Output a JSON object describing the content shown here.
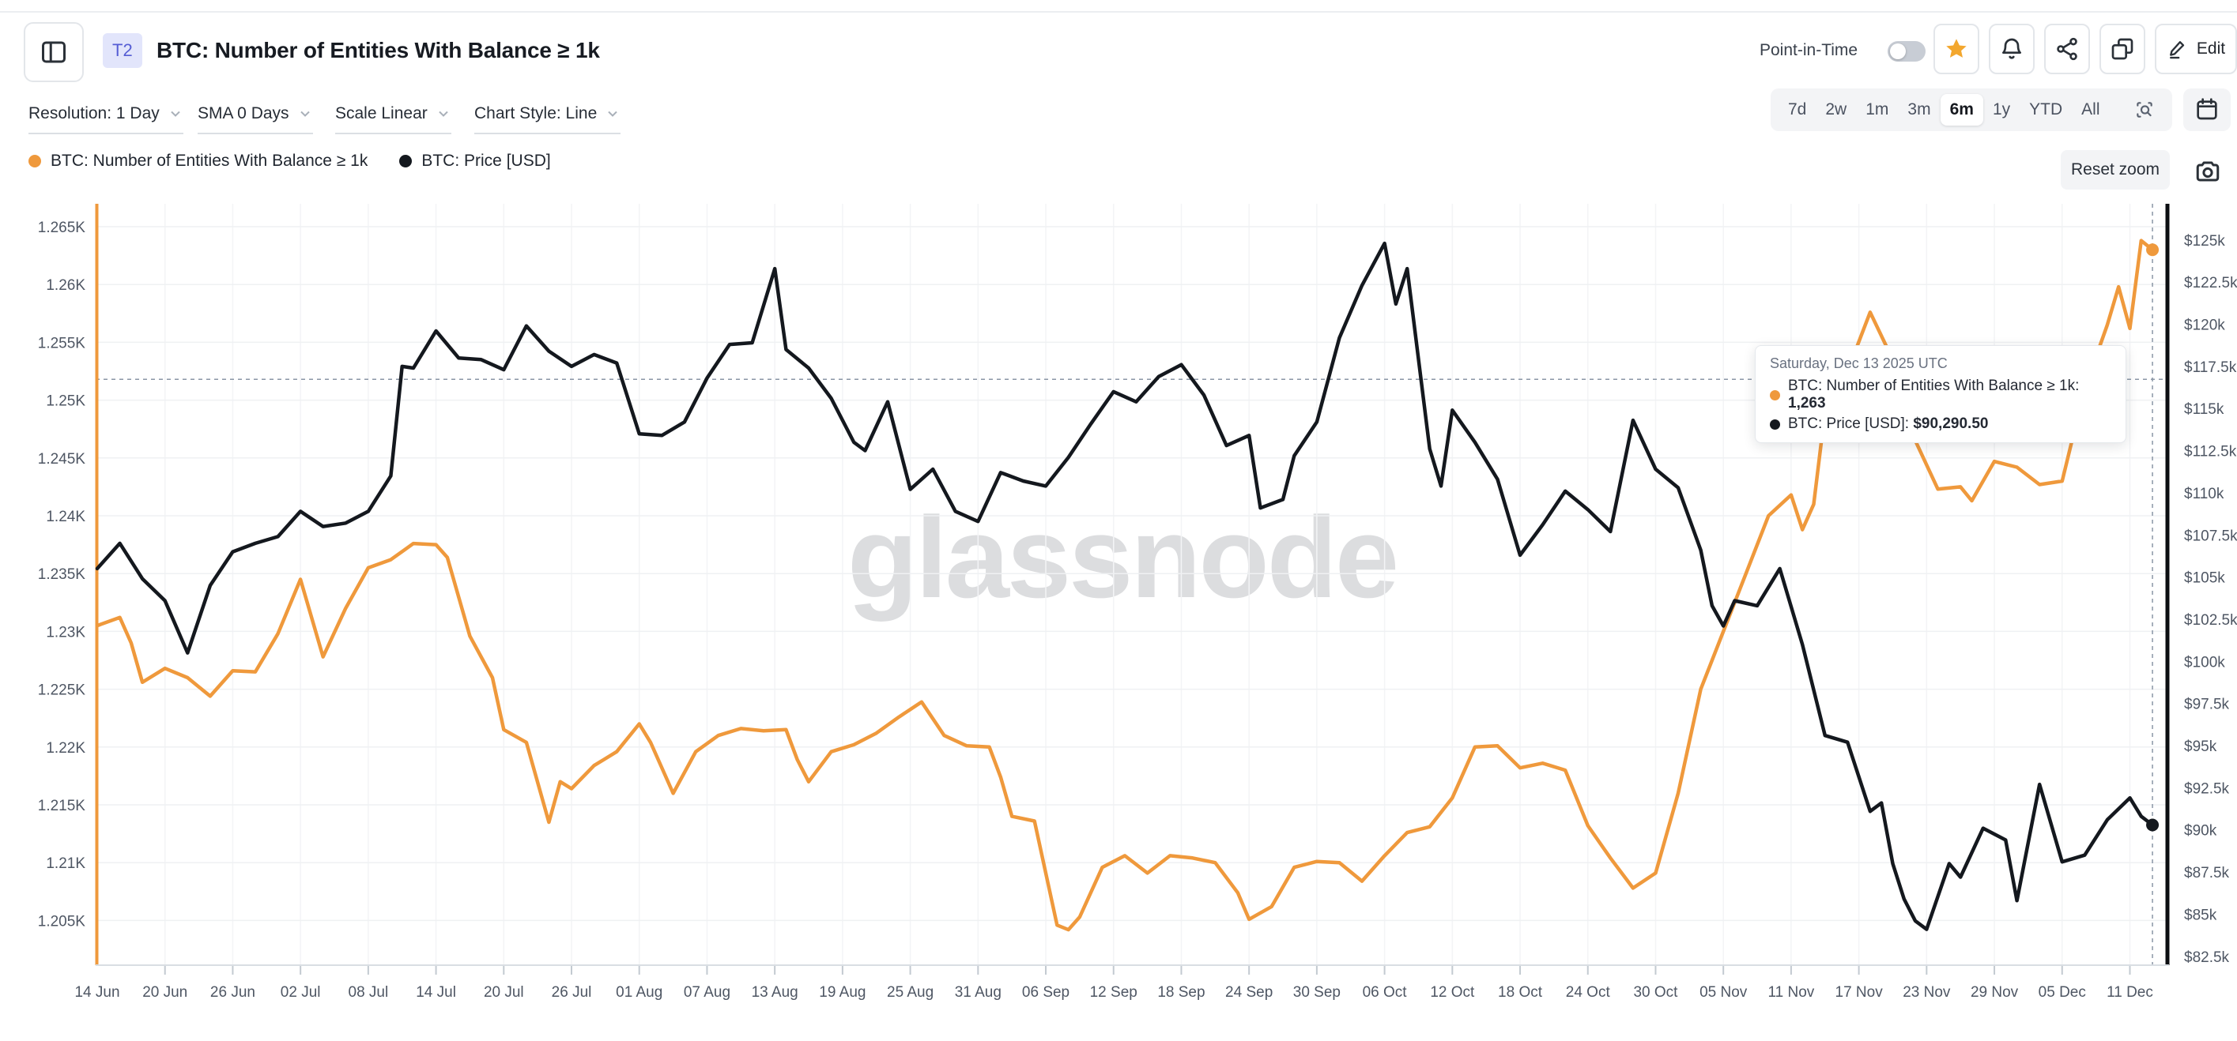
{
  "header": {
    "badge": "T2",
    "title": "BTC: Number of Entities With Balance ≥ 1k",
    "point_in_time_label": "Point-in-Time",
    "point_in_time_on": false,
    "edit_label": "Edit"
  },
  "toolbar": {
    "dropdowns": [
      {
        "label": "Resolution: 1 Day"
      },
      {
        "label": "SMA 0 Days"
      },
      {
        "label": "Scale Linear"
      },
      {
        "label": "Chart Style: Line"
      }
    ]
  },
  "ranges": {
    "items": [
      "7d",
      "2w",
      "1m",
      "3m",
      "6m",
      "1y",
      "YTD",
      "All"
    ],
    "active": "6m"
  },
  "reset_zoom_label": "Reset zoom",
  "watermark": "glassnode",
  "legend": [
    {
      "label": "BTC: Number of Entities With Balance ≥ 1k",
      "color": "#EF993C"
    },
    {
      "label": "BTC: Price [USD]",
      "color": "#14181E"
    }
  ],
  "tooltip": {
    "date": "Saturday, Dec 13 2025 UTC",
    "rows": [
      {
        "label": "BTC: Number of Entities With Balance ≥ 1k:",
        "value": "1,263",
        "color": "#EF993C"
      },
      {
        "label": "BTC: Price [USD]:",
        "value": "$90,290.50",
        "color": "#14181E"
      }
    ]
  },
  "colors": {
    "orange": "#EF993C",
    "black_line": "#14181E",
    "star": "#F3A72E",
    "badge_bg": "#E2E5FB",
    "badge_text": "#555DD4",
    "grid": "#EFF1F3",
    "crosshair": "#8A96A6",
    "axis_text": "#4E5663"
  },
  "chart_data": {
    "type": "line",
    "title": "BTC: Number of Entities With Balance ≥ 1k vs BTC: Price [USD]",
    "x_axis": {
      "start_date": "2025-06-14",
      "end_date": "2025-12-13",
      "tick_interval_days": 6,
      "tick_labels": [
        "14 Jun",
        "20 Jun",
        "26 Jun",
        "02 Jul",
        "08 Jul",
        "14 Jul",
        "20 Jul",
        "26 Jul",
        "01 Aug",
        "07 Aug",
        "13 Aug",
        "19 Aug",
        "25 Aug",
        "31 Aug",
        "06 Sep",
        "12 Sep",
        "18 Sep",
        "24 Sep",
        "30 Sep",
        "06 Oct",
        "12 Oct",
        "18 Oct",
        "24 Oct",
        "30 Oct",
        "05 Nov",
        "11 Nov",
        "17 Nov",
        "23 Nov",
        "29 Nov",
        "05 Dec",
        "11 Dec"
      ]
    },
    "left_axis": {
      "min": 1205,
      "max": 1265,
      "ticks": [
        {
          "label": "1.265K",
          "value": 1265
        },
        {
          "label": "1.26K",
          "value": 1260
        },
        {
          "label": "1.255K",
          "value": 1255
        },
        {
          "label": "1.25K",
          "value": 1250
        },
        {
          "label": "1.245K",
          "value": 1245
        },
        {
          "label": "1.24K",
          "value": 1240
        },
        {
          "label": "1.235K",
          "value": 1235
        },
        {
          "label": "1.23K",
          "value": 1230
        },
        {
          "label": "1.225K",
          "value": 1225
        },
        {
          "label": "1.22K",
          "value": 1220
        },
        {
          "label": "1.215K",
          "value": 1215
        },
        {
          "label": "1.21K",
          "value": 1210
        },
        {
          "label": "1.205K",
          "value": 1205
        }
      ]
    },
    "right_axis": {
      "min": 82.5,
      "max": 125,
      "ticks": [
        {
          "label": "$125k",
          "value": 125
        },
        {
          "label": "$122.5k",
          "value": 122.5
        },
        {
          "label": "$120k",
          "value": 120
        },
        {
          "label": "$117.5k",
          "value": 117.5
        },
        {
          "label": "$115k",
          "value": 115
        },
        {
          "label": "$112.5k",
          "value": 112.5
        },
        {
          "label": "$110k",
          "value": 110
        },
        {
          "label": "$107.5k",
          "value": 107.5
        },
        {
          "label": "$105k",
          "value": 105
        },
        {
          "label": "$102.5k",
          "value": 102.5
        },
        {
          "label": "$100k",
          "value": 100
        },
        {
          "label": "$97.5k",
          "value": 97.5
        },
        {
          "label": "$95k",
          "value": 95
        },
        {
          "label": "$92.5k",
          "value": 92.5
        },
        {
          "label": "$90k",
          "value": 90
        },
        {
          "label": "$87.5k",
          "value": 87.5
        },
        {
          "label": "$85k",
          "value": 85
        },
        {
          "label": "$82.5k",
          "value": 82.5
        }
      ]
    },
    "crosshair": {
      "day": 182,
      "left_value": 1251.8
    },
    "grid": true,
    "legend_position": "top-left",
    "series": [
      {
        "name": "BTC: Number of Entities With Balance ≥ 1k",
        "color": "#EF993C",
        "axis": "left",
        "end_marker": true,
        "points": [
          [
            0,
            1230.5
          ],
          [
            2,
            1231.2
          ],
          [
            3,
            1229.0
          ],
          [
            4,
            1225.6
          ],
          [
            6,
            1226.8
          ],
          [
            8,
            1226.0
          ],
          [
            10,
            1224.4
          ],
          [
            12,
            1226.6
          ],
          [
            14,
            1226.5
          ],
          [
            16,
            1229.8
          ],
          [
            18,
            1234.5
          ],
          [
            20,
            1227.8
          ],
          [
            22,
            1232.0
          ],
          [
            24,
            1235.5
          ],
          [
            26,
            1236.2
          ],
          [
            28,
            1237.6
          ],
          [
            30,
            1237.5
          ],
          [
            31,
            1236.4
          ],
          [
            33,
            1229.6
          ],
          [
            35,
            1226.0
          ],
          [
            36,
            1221.5
          ],
          [
            38,
            1220.4
          ],
          [
            40,
            1213.5
          ],
          [
            41,
            1217.0
          ],
          [
            42,
            1216.4
          ],
          [
            44,
            1218.4
          ],
          [
            46,
            1219.6
          ],
          [
            48,
            1222.0
          ],
          [
            49,
            1220.4
          ],
          [
            51,
            1216.0
          ],
          [
            53,
            1219.6
          ],
          [
            55,
            1221.0
          ],
          [
            57,
            1221.6
          ],
          [
            59,
            1221.4
          ],
          [
            61,
            1221.5
          ],
          [
            62,
            1218.9
          ],
          [
            63,
            1217.0
          ],
          [
            65,
            1219.6
          ],
          [
            67,
            1220.2
          ],
          [
            69,
            1221.2
          ],
          [
            71,
            1222.6
          ],
          [
            73,
            1223.9
          ],
          [
            75,
            1221.0
          ],
          [
            77,
            1220.1
          ],
          [
            79,
            1220.0
          ],
          [
            80,
            1217.4
          ],
          [
            81,
            1214.0
          ],
          [
            83,
            1213.6
          ],
          [
            85,
            1204.6
          ],
          [
            86,
            1204.2
          ],
          [
            87,
            1205.3
          ],
          [
            89,
            1209.6
          ],
          [
            91,
            1210.6
          ],
          [
            93,
            1209.1
          ],
          [
            95,
            1210.6
          ],
          [
            97,
            1210.4
          ],
          [
            99,
            1210.0
          ],
          [
            101,
            1207.4
          ],
          [
            102,
            1205.1
          ],
          [
            104,
            1206.2
          ],
          [
            106,
            1209.6
          ],
          [
            108,
            1210.1
          ],
          [
            110,
            1210.0
          ],
          [
            112,
            1208.4
          ],
          [
            114,
            1210.6
          ],
          [
            116,
            1212.6
          ],
          [
            118,
            1213.1
          ],
          [
            120,
            1215.6
          ],
          [
            122,
            1220.0
          ],
          [
            124,
            1220.1
          ],
          [
            126,
            1218.2
          ],
          [
            128,
            1218.6
          ],
          [
            130,
            1218.0
          ],
          [
            132,
            1213.2
          ],
          [
            134,
            1210.4
          ],
          [
            136,
            1207.8
          ],
          [
            138,
            1209.1
          ],
          [
            140,
            1216.0
          ],
          [
            142,
            1225.0
          ],
          [
            144,
            1230.0
          ],
          [
            146,
            1235.0
          ],
          [
            148,
            1240.0
          ],
          [
            150,
            1241.8
          ],
          [
            151,
            1238.8
          ],
          [
            152,
            1241.0
          ],
          [
            153,
            1249.0
          ],
          [
            155,
            1252.5
          ],
          [
            157,
            1257.6
          ],
          [
            159,
            1253.5
          ],
          [
            160,
            1248.0
          ],
          [
            161,
            1246.5
          ],
          [
            163,
            1242.3
          ],
          [
            165,
            1242.5
          ],
          [
            166,
            1241.3
          ],
          [
            168,
            1244.7
          ],
          [
            170,
            1244.2
          ],
          [
            172,
            1242.7
          ],
          [
            174,
            1243.0
          ],
          [
            176,
            1251.0
          ],
          [
            178,
            1256.5
          ],
          [
            179,
            1259.8
          ],
          [
            180,
            1256.2
          ],
          [
            181,
            1263.8
          ],
          [
            182,
            1263
          ]
        ]
      },
      {
        "name": "BTC: Price [USD]",
        "color": "#14181E",
        "axis": "right",
        "end_marker": true,
        "points": [
          [
            0,
            105.5
          ],
          [
            2,
            107.0
          ],
          [
            4,
            104.9
          ],
          [
            6,
            103.6
          ],
          [
            8,
            100.5
          ],
          [
            10,
            104.5
          ],
          [
            12,
            106.5
          ],
          [
            14,
            107.0
          ],
          [
            16,
            107.4
          ],
          [
            18,
            108.9
          ],
          [
            20,
            108.0
          ],
          [
            22,
            108.2
          ],
          [
            24,
            108.9
          ],
          [
            26,
            111.0
          ],
          [
            27,
            117.5
          ],
          [
            28,
            117.4
          ],
          [
            30,
            119.6
          ],
          [
            32,
            118.0
          ],
          [
            34,
            117.9
          ],
          [
            36,
            117.3
          ],
          [
            38,
            119.9
          ],
          [
            40,
            118.4
          ],
          [
            42,
            117.5
          ],
          [
            44,
            118.2
          ],
          [
            46,
            117.7
          ],
          [
            48,
            113.5
          ],
          [
            50,
            113.4
          ],
          [
            52,
            114.2
          ],
          [
            54,
            116.8
          ],
          [
            56,
            118.8
          ],
          [
            58,
            118.9
          ],
          [
            60,
            123.3
          ],
          [
            61,
            118.5
          ],
          [
            63,
            117.4
          ],
          [
            65,
            115.6
          ],
          [
            67,
            113.0
          ],
          [
            68,
            112.5
          ],
          [
            70,
            115.4
          ],
          [
            72,
            110.2
          ],
          [
            74,
            111.4
          ],
          [
            76,
            108.9
          ],
          [
            78,
            108.3
          ],
          [
            80,
            111.2
          ],
          [
            82,
            110.7
          ],
          [
            84,
            110.4
          ],
          [
            86,
            112.1
          ],
          [
            88,
            114.1
          ],
          [
            90,
            116.0
          ],
          [
            92,
            115.4
          ],
          [
            94,
            116.9
          ],
          [
            96,
            117.6
          ],
          [
            98,
            115.8
          ],
          [
            100,
            112.8
          ],
          [
            102,
            113.4
          ],
          [
            103,
            109.1
          ],
          [
            105,
            109.6
          ],
          [
            106,
            112.2
          ],
          [
            108,
            114.2
          ],
          [
            110,
            119.2
          ],
          [
            112,
            122.3
          ],
          [
            114,
            124.8
          ],
          [
            115,
            121.2
          ],
          [
            116,
            123.3
          ],
          [
            118,
            112.6
          ],
          [
            119,
            110.4
          ],
          [
            120,
            114.9
          ],
          [
            122,
            113.0
          ],
          [
            124,
            110.8
          ],
          [
            126,
            106.3
          ],
          [
            128,
            108.1
          ],
          [
            130,
            110.1
          ],
          [
            132,
            109.0
          ],
          [
            134,
            107.7
          ],
          [
            136,
            114.3
          ],
          [
            138,
            111.4
          ],
          [
            140,
            110.3
          ],
          [
            142,
            106.6
          ],
          [
            143,
            103.3
          ],
          [
            144,
            102.1
          ],
          [
            145,
            103.6
          ],
          [
            147,
            103.3
          ],
          [
            149,
            105.5
          ],
          [
            151,
            101.0
          ],
          [
            153,
            95.6
          ],
          [
            155,
            95.2
          ],
          [
            157,
            91.1
          ],
          [
            158,
            91.6
          ],
          [
            159,
            88.0
          ],
          [
            160,
            85.9
          ],
          [
            161,
            84.6
          ],
          [
            162,
            84.1
          ],
          [
            164,
            88.0
          ],
          [
            165,
            87.2
          ],
          [
            167,
            90.1
          ],
          [
            169,
            89.4
          ],
          [
            170,
            85.8
          ],
          [
            172,
            92.7
          ],
          [
            174,
            88.1
          ],
          [
            176,
            88.5
          ],
          [
            178,
            90.6
          ],
          [
            180,
            91.9
          ],
          [
            181,
            90.8
          ],
          [
            182,
            90.29
          ]
        ]
      }
    ]
  }
}
